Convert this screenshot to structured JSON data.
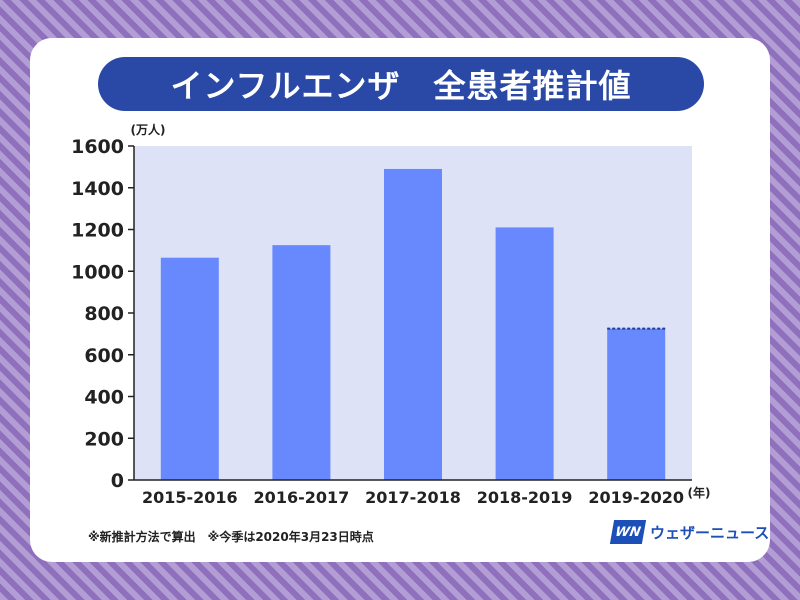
{
  "header": {
    "title": "インフルエンザ　全患者推計値"
  },
  "colors": {
    "bar": "#6889fd",
    "plot_bg": "#dde2f7",
    "title_bg": "#2a49a6",
    "text": "#222222",
    "dash": "#1b3ea8"
  },
  "chart_data": {
    "type": "bar",
    "categories": [
      "2015-2016",
      "2016-2017",
      "2017-2018",
      "2018-2019",
      "2019-2020"
    ],
    "values": [
      1065,
      1125,
      1490,
      1210,
      725
    ],
    "ylim": [
      0,
      1600
    ],
    "yticks": [
      0,
      200,
      400,
      600,
      800,
      1000,
      1200,
      1400,
      1600
    ],
    "yunit": "(万人)",
    "xunit": "(年)",
    "grid": false,
    "dashed_top_category": "2019-2020"
  },
  "footer": {
    "note": "※新推計方法で算出　※今季は2020年3月23日時点",
    "logo_mark": "WN",
    "logo_text": "ウェザーニュース"
  }
}
